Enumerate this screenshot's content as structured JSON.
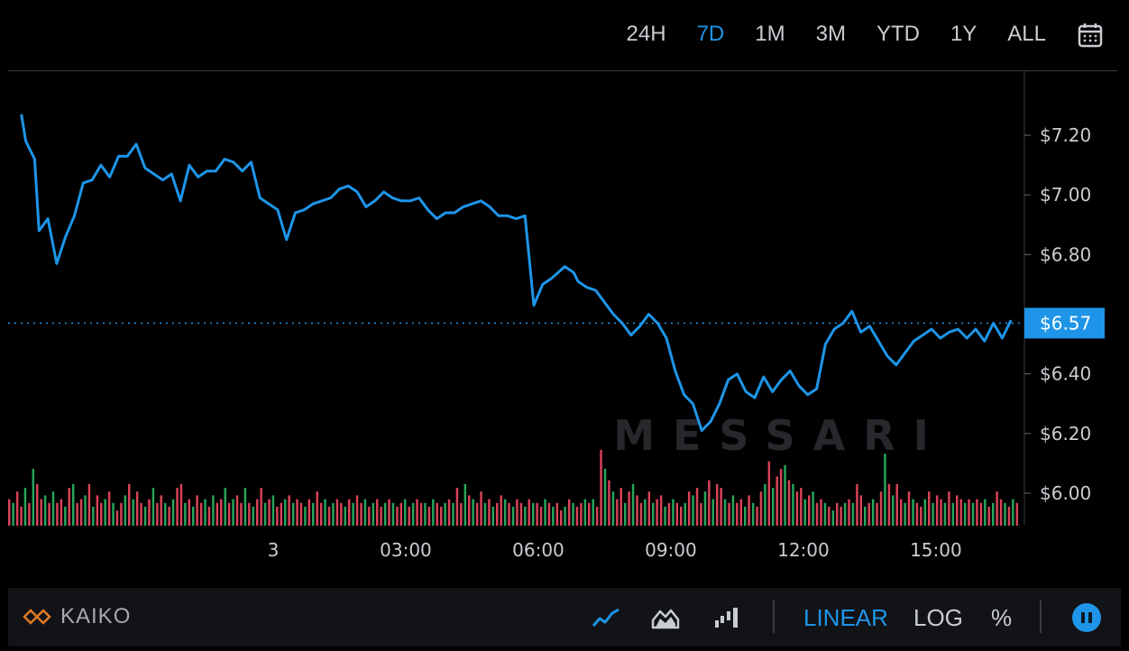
{
  "range_tabs": [
    {
      "label": "24H",
      "active": false
    },
    {
      "label": "7D",
      "active": true
    },
    {
      "label": "1M",
      "active": false
    },
    {
      "label": "3M",
      "active": false
    },
    {
      "label": "YTD",
      "active": false
    },
    {
      "label": "1Y",
      "active": false
    },
    {
      "label": "ALL",
      "active": false
    }
  ],
  "icons": {
    "calendar": "calendar-icon",
    "line_chart": "line-chart-icon",
    "area_chart": "area-chart-icon",
    "bar_chart": "bar-chart-icon",
    "pause": "pause-icon"
  },
  "watermark": "MESSARI",
  "source_logo": "KAIKO",
  "scale_buttons": [
    {
      "label": "LINEAR",
      "active": true
    },
    {
      "label": "LOG",
      "active": false
    },
    {
      "label": "%",
      "active": false
    }
  ],
  "colors": {
    "line": "#1e95e8",
    "volume_up": "#26a65b",
    "volume_down": "#d9435a",
    "background": "#000000",
    "grid_text": "#c9ccd1"
  },
  "chart_data": {
    "type": "line",
    "y_unit": "USD",
    "ylim": [
      5.9,
      7.6
    ],
    "y_ticks": [
      {
        "value": 7.2,
        "label": "$7.20"
      },
      {
        "value": 7.0,
        "label": "$7.00"
      },
      {
        "value": 6.8,
        "label": "$6.80"
      },
      {
        "value": 6.4,
        "label": "$6.40"
      },
      {
        "value": 6.2,
        "label": "$6.20"
      },
      {
        "value": 6.0,
        "label": "$6.00"
      }
    ],
    "current_price": {
      "value": 6.57,
      "label": "$6.57"
    },
    "x_range_hours": [
      -6,
      16.9
    ],
    "x_ticks": [
      {
        "hour": 0,
        "label": "3"
      },
      {
        "hour": 3,
        "label": "03:00"
      },
      {
        "hour": 6,
        "label": "06:00"
      },
      {
        "hour": 9,
        "label": "09:00"
      },
      {
        "hour": 12,
        "label": "12:00"
      },
      {
        "hour": 15,
        "label": "15:00"
      }
    ],
    "series": [
      {
        "x": [
          -5.7,
          -5.6,
          -5.4,
          -5.3,
          -5.1,
          -4.9,
          -4.7,
          -4.5,
          -4.3,
          -4.1,
          -3.9,
          -3.7,
          -3.5,
          -3.3,
          -3.1,
          -2.9,
          -2.7,
          -2.5,
          -2.3,
          -2.1,
          -1.9,
          -1.7,
          -1.5,
          -1.3,
          -1.1,
          -0.9,
          -0.7,
          -0.5,
          -0.3,
          -0.1,
          0.1,
          0.3,
          0.5,
          0.7,
          0.9,
          1.1,
          1.3,
          1.5,
          1.7,
          1.9,
          2.1,
          2.3,
          2.5,
          2.7,
          2.9,
          3.1,
          3.3,
          3.5,
          3.7,
          3.9,
          4.1,
          4.3,
          4.5,
          4.7,
          4.9,
          5.1,
          5.3,
          5.5,
          5.7,
          5.9,
          6.1,
          6.3,
          6.6,
          6.8,
          6.9,
          7.1,
          7.3,
          7.5,
          7.7,
          7.9,
          8.1,
          8.3,
          8.5,
          8.7,
          8.9,
          9.1,
          9.3,
          9.5,
          9.7,
          9.9,
          10.1,
          10.3,
          10.5,
          10.7,
          10.9,
          11.1,
          11.3,
          11.5,
          11.7,
          11.9,
          12.1,
          12.3,
          12.5,
          12.7,
          12.9,
          13.1,
          13.3,
          13.5,
          13.7,
          13.9,
          14.1,
          14.3,
          14.5,
          14.7,
          14.9,
          15.1,
          15.3,
          15.5,
          15.7,
          15.9,
          16.1,
          16.3,
          16.5,
          16.7
        ],
        "y": [
          7.27,
          7.18,
          7.12,
          6.88,
          6.92,
          6.77,
          6.86,
          6.93,
          7.04,
          7.05,
          7.1,
          7.06,
          7.13,
          7.13,
          7.17,
          7.09,
          7.07,
          7.05,
          7.07,
          6.98,
          7.1,
          7.06,
          7.08,
          7.08,
          7.12,
          7.11,
          7.08,
          7.11,
          6.99,
          6.97,
          6.95,
          6.85,
          6.94,
          6.95,
          6.97,
          6.98,
          6.99,
          7.02,
          7.03,
          7.01,
          6.96,
          6.98,
          7.01,
          6.99,
          6.98,
          6.98,
          6.99,
          6.95,
          6.92,
          6.94,
          6.94,
          6.96,
          6.97,
          6.98,
          6.96,
          6.93,
          6.93,
          6.92,
          6.93,
          6.63,
          6.7,
          6.72,
          6.76,
          6.74,
          6.71,
          6.69,
          6.68,
          6.64,
          6.6,
          6.57,
          6.53,
          6.56,
          6.6,
          6.57,
          6.52,
          6.41,
          6.33,
          6.3,
          6.21,
          6.24,
          6.3,
          6.38,
          6.4,
          6.34,
          6.32,
          6.39,
          6.34,
          6.38,
          6.41,
          6.36,
          6.33,
          6.35,
          6.5,
          6.55,
          6.57,
          6.61,
          6.54,
          6.56,
          6.51,
          6.46,
          6.43,
          6.47,
          6.51,
          6.53,
          6.55,
          6.52,
          6.54,
          6.55,
          6.52,
          6.55,
          6.51,
          6.57,
          6.52,
          6.58
        ]
      }
    ],
    "volume": {
      "scale": "relative",
      "values": [
        0.35,
        0.3,
        0.45,
        0.25,
        0.5,
        0.3,
        0.75,
        0.55,
        0.35,
        0.4,
        0.3,
        0.45,
        0.3,
        0.35,
        0.25,
        0.5,
        0.55,
        0.3,
        0.35,
        0.4,
        0.55,
        0.25,
        0.4,
        0.3,
        0.35,
        0.45,
        0.3,
        0.2,
        0.3,
        0.4,
        0.55,
        0.35,
        0.45,
        0.3,
        0.25,
        0.35,
        0.5,
        0.3,
        0.4,
        0.3,
        0.25,
        0.35,
        0.5,
        0.55,
        0.3,
        0.35,
        0.25,
        0.4,
        0.3,
        0.35,
        0.25,
        0.4,
        0.3,
        0.35,
        0.5,
        0.3,
        0.35,
        0.4,
        0.3,
        0.5,
        0.3,
        0.25,
        0.35,
        0.5,
        0.3,
        0.35,
        0.4,
        0.25,
        0.3,
        0.35,
        0.4,
        0.3,
        0.35,
        0.3,
        0.25,
        0.35,
        0.3,
        0.45,
        0.3,
        0.35,
        0.25,
        0.3,
        0.35,
        0.3,
        0.25,
        0.35,
        0.3,
        0.4,
        0.3,
        0.35,
        0.25,
        0.3,
        0.35,
        0.25,
        0.3,
        0.35,
        0.3,
        0.25,
        0.3,
        0.35,
        0.25,
        0.3,
        0.35,
        0.3,
        0.3,
        0.25,
        0.35,
        0.3,
        0.25,
        0.3,
        0.35,
        0.3,
        0.5,
        0.3,
        0.55,
        0.4,
        0.35,
        0.3,
        0.45,
        0.3,
        0.35,
        0.25,
        0.3,
        0.4,
        0.35,
        0.3,
        0.25,
        0.35,
        0.3,
        0.25,
        0.35,
        0.3,
        0.3,
        0.25,
        0.35,
        0.3,
        0.25,
        0.3,
        0.2,
        0.25,
        0.35,
        0.3,
        0.25,
        0.3,
        0.35,
        0.3,
        0.35,
        0.25,
        1.0,
        0.75,
        0.6,
        0.45,
        0.35,
        0.5,
        0.3,
        0.45,
        0.55,
        0.4,
        0.3,
        0.35,
        0.45,
        0.3,
        0.35,
        0.4,
        0.25,
        0.3,
        0.35,
        0.3,
        0.25,
        0.3,
        0.45,
        0.4,
        0.5,
        0.3,
        0.45,
        0.6,
        0.35,
        0.55,
        0.5,
        0.35,
        0.3,
        0.4,
        0.3,
        0.35,
        0.25,
        0.4,
        0.3,
        0.25,
        0.45,
        0.55,
        0.85,
        0.5,
        0.65,
        0.75,
        0.8,
        0.6,
        0.55,
        0.45,
        0.5,
        0.35,
        0.4,
        0.45,
        0.3,
        0.35,
        0.3,
        0.25,
        0.2,
        0.3,
        0.25,
        0.3,
        0.35,
        0.3,
        0.55,
        0.4,
        0.25,
        0.3,
        0.35,
        0.3,
        0.45,
        0.95,
        0.55,
        0.4,
        0.55,
        0.35,
        0.3,
        0.45,
        0.35,
        0.3,
        0.25,
        0.35,
        0.45,
        0.3,
        0.4,
        0.35,
        0.3,
        0.45,
        0.3,
        0.4,
        0.35,
        0.3,
        0.35,
        0.3,
        0.35,
        0.3,
        0.35,
        0.25,
        0.3,
        0.45,
        0.35,
        0.3,
        0.25,
        0.35,
        0.3
      ]
    }
  }
}
